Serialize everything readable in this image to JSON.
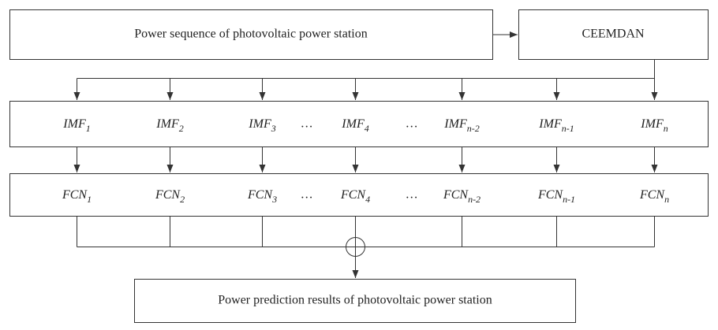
{
  "input": {
    "label": "Power sequence of photovoltaic power station"
  },
  "decomposition": {
    "label": "CEEMDAN"
  },
  "imf_row": [
    {
      "base": "IMF",
      "sub": "1"
    },
    {
      "base": "IMF",
      "sub": "2"
    },
    {
      "base": "IMF",
      "sub": "3"
    },
    {
      "text": "…"
    },
    {
      "base": "IMF",
      "sub": "4"
    },
    {
      "text": "…"
    },
    {
      "base": "IMF",
      "sub": "n-2"
    },
    {
      "base": "IMF",
      "sub": "n-1"
    },
    {
      "base": "IMF",
      "sub": "n"
    }
  ],
  "fcn_row": [
    {
      "base": "FCN",
      "sub": "1"
    },
    {
      "base": "FCN",
      "sub": "2"
    },
    {
      "base": "FCN",
      "sub": "3"
    },
    {
      "text": "…"
    },
    {
      "base": "FCN",
      "sub": "4"
    },
    {
      "text": "…"
    },
    {
      "base": "FCN",
      "sub": "n-2"
    },
    {
      "base": "FCN",
      "sub": "n-1"
    },
    {
      "base": "FCN",
      "sub": "n"
    }
  ],
  "output": {
    "label": "Power prediction results of photovoltaic power station"
  }
}
